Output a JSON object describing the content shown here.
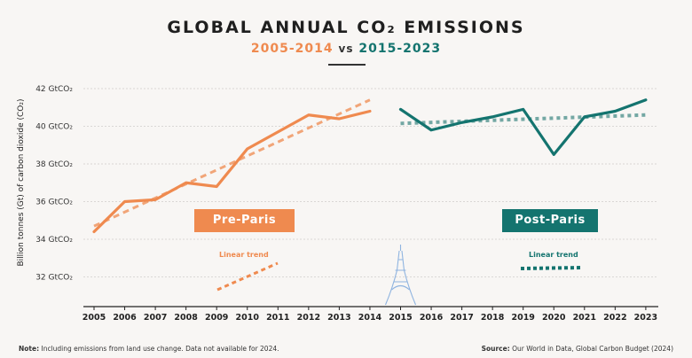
{
  "title": "GLOBAL ANNUAL CO₂ EMISSIONS",
  "subtitle": {
    "period_a": "2005-2014",
    "vs": "vs",
    "period_b": "2015-2023"
  },
  "colors": {
    "pre": "#ef8a4f",
    "post": "#14746f",
    "post_trend": "#5c9a95",
    "eiffel": "#8fb4e0"
  },
  "labels": {
    "pre_badge": "Pre-Paris",
    "post_badge": "Post-Paris",
    "pre_trend": "Linear trend",
    "post_trend": "Linear trend"
  },
  "footer": {
    "note_key": "Note:",
    "note": " Including emissions from land use change. Data not available for 2024.",
    "source_key": "Source:",
    "source": " Our World in Data, Global Carbon Budget (2024)"
  },
  "chart_data": {
    "type": "line",
    "ylabel": "Billion tonnes (Gt) of carbon dioxide (CO₂)",
    "ylim": [
      31,
      42
    ],
    "yticks": [
      32,
      34,
      36,
      38,
      40,
      42
    ],
    "ytick_labels": [
      "32 GtCO₂",
      "34 GtCO₂",
      "36 GtCO₂",
      "38 GtCO₂",
      "40 GtCO₂",
      "42 GtCO₂"
    ],
    "x": [
      2005,
      2006,
      2007,
      2008,
      2009,
      2010,
      2011,
      2012,
      2013,
      2014,
      2015,
      2016,
      2017,
      2018,
      2019,
      2020,
      2021,
      2022,
      2023
    ],
    "highlight_x": 2015,
    "grid": true,
    "series": [
      {
        "name": "Pre-Paris",
        "x": [
          2005,
          2006,
          2007,
          2008,
          2009,
          2010,
          2011,
          2012,
          2013,
          2014
        ],
        "values": [
          34.4,
          36.0,
          36.1,
          37.0,
          36.8,
          38.8,
          39.7,
          40.6,
          40.4,
          40.8
        ],
        "trend": [
          34.7,
          41.4
        ]
      },
      {
        "name": "Post-Paris",
        "x": [
          2015,
          2016,
          2017,
          2018,
          2019,
          2020,
          2021,
          2022,
          2023
        ],
        "values": [
          40.9,
          39.8,
          40.2,
          40.5,
          40.9,
          38.5,
          40.5,
          40.8,
          41.4
        ],
        "trend": [
          40.15,
          40.6
        ]
      }
    ]
  }
}
